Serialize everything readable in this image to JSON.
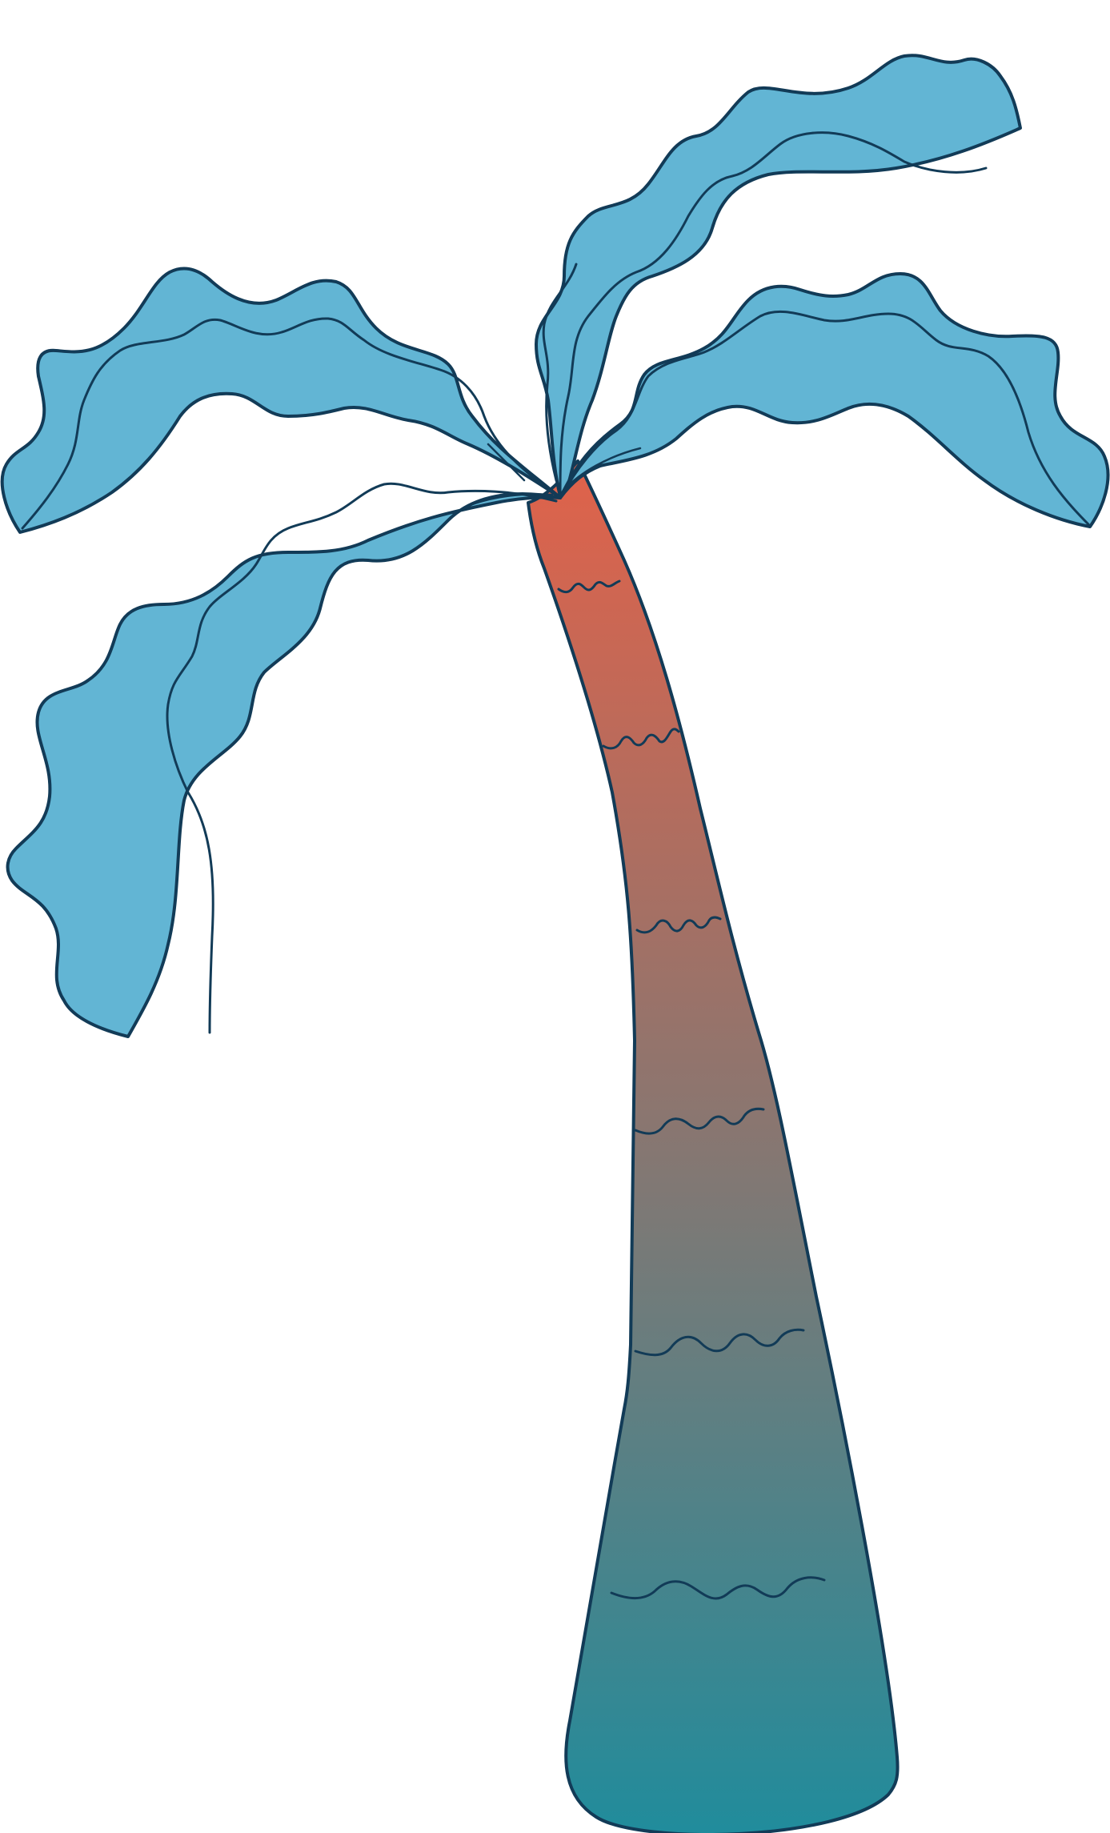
{
  "illustration": {
    "subject": "palm-tree",
    "colors": {
      "background": "#ffffff",
      "leaf_fill": "#62b5d4",
      "outline": "#123b57",
      "trunk_top": "#e0624a",
      "trunk_mid": "#8a7670",
      "trunk_bottom": "#208c9c"
    },
    "parts": [
      "palm-frond",
      "palm-trunk",
      "trunk-texture-marks"
    ]
  }
}
